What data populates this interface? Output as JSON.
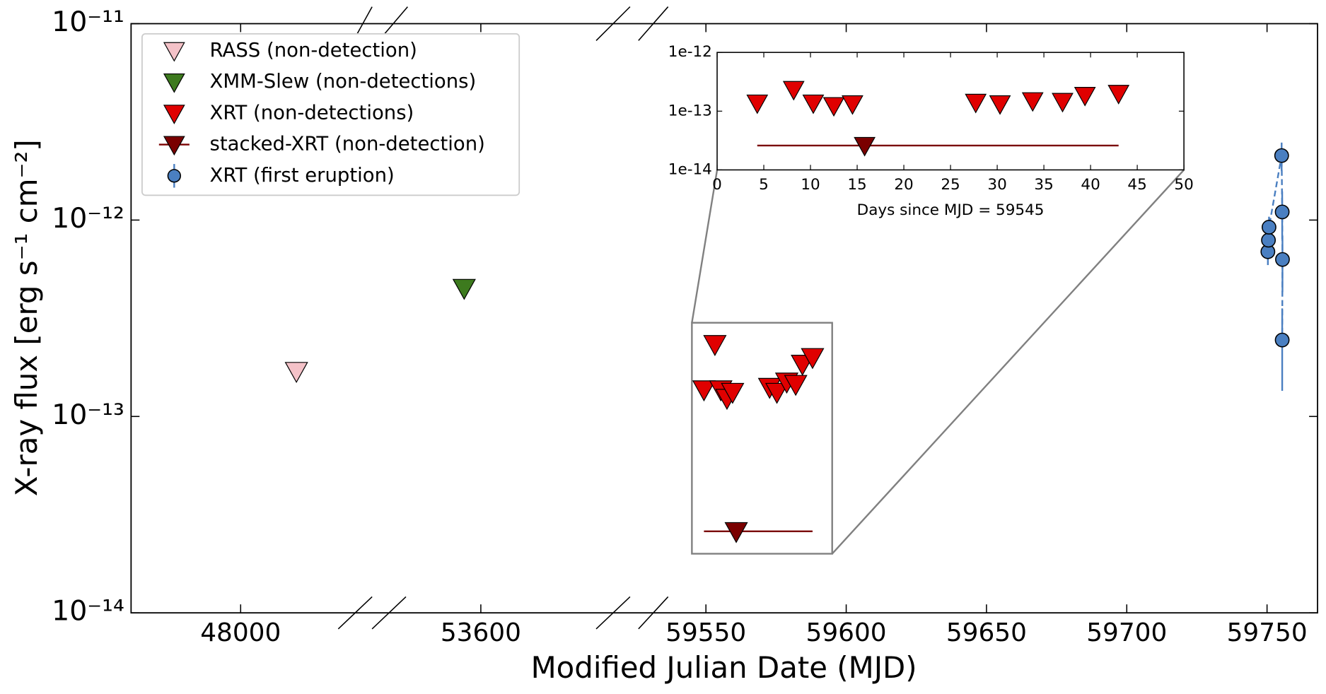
{
  "chart_data": {
    "type": "scatter",
    "xlabel": "Modified Julian Date (MJD)",
    "ylabel": "X-ray flux [erg s⁻¹ cm⁻²]",
    "log_y": true,
    "legend": "upper left",
    "ylim": [
      1e-14,
      1e-11
    ],
    "yticks": [
      {
        "value": 1e-14,
        "label": "10⁻¹⁴"
      },
      {
        "value": 1e-13,
        "label": "10⁻¹³"
      },
      {
        "value": 1e-12,
        "label": "10⁻¹²"
      },
      {
        "value": 1e-11,
        "label": "10⁻¹¹"
      }
    ],
    "x_segments": [
      {
        "xlim": [
          45800,
          50300
        ],
        "xticks": [
          48000
        ]
      },
      {
        "xlim": [
          52100,
          55600
        ],
        "xticks": [
          53600
        ]
      },
      {
        "xlim": [
          59535,
          59768
        ],
        "xticks": [
          59550,
          59600,
          59650,
          59700,
          59750
        ]
      }
    ],
    "series": [
      {
        "name": "RASS (non-detection)",
        "color": "#f4c2c8",
        "marker": "down-triangle",
        "x": [
          49120
        ],
        "values": [
          1.7e-13
        ]
      },
      {
        "name": "XMM-Slew (non-detections)",
        "color": "#3d7a1e",
        "marker": "down-triangle",
        "x": [
          53340
        ],
        "values": [
          4.5e-13
        ]
      },
      {
        "name": "XRT (non-detections)",
        "color": "#e00000",
        "marker": "down-triangle",
        "x": [
          59549.3,
          59553.2,
          59555.3,
          59557.5,
          59559.5,
          59572.7,
          59575.3,
          59578.8,
          59582.0,
          59584.4,
          59588.0
        ],
        "values": [
          1.37e-13,
          2.33e-13,
          1.37e-13,
          1.24e-13,
          1.33e-13,
          1.41e-13,
          1.33e-13,
          1.5e-13,
          1.46e-13,
          1.85e-13,
          2e-13
        ]
      },
      {
        "name": "stacked-XRT (non-detection)",
        "color": "#7a0000",
        "marker": "down-triangle",
        "x": [
          59560.8
        ],
        "values": [
          2.6e-14
        ],
        "xerr": [
          [
            11.5,
            27.2
          ]
        ]
      },
      {
        "name": "XRT (first eruption)",
        "color": "#4a7fc1",
        "marker": "circle",
        "x": [
          59750.3,
          59750.5,
          59750.7,
          59755.2,
          59755.4,
          59755.5,
          59755.4
        ],
        "values": [
          6.9e-13,
          7.9e-13,
          9.2e-13,
          2.13e-12,
          1.1e-12,
          6.3e-13,
          2.45e-13
        ],
        "yerr": [
          1e-13,
          1e-13,
          1.2e-13,
          3.5e-13,
          3e-13,
          2e-13,
          1.1e-13
        ],
        "line": "dashed"
      }
    ],
    "zoom_box": {
      "xlim": [
        59545,
        59595
      ],
      "ylim": [
        2e-14,
        3e-13
      ]
    },
    "inset": {
      "xlabel": "Days since MJD = 59545",
      "xlim": [
        0,
        50
      ],
      "xticks": [
        0,
        5,
        10,
        15,
        20,
        25,
        30,
        35,
        40,
        45,
        50
      ],
      "ylim": [
        1e-14,
        1e-12
      ],
      "yticks": [
        {
          "value": 1e-14,
          "label": "1e-14"
        },
        {
          "value": 1e-13,
          "label": "1e-13"
        },
        {
          "value": 1e-12,
          "label": "1e-12"
        }
      ],
      "series": [
        {
          "color": "#e00000",
          "x": [
            4.3,
            8.2,
            10.3,
            12.5,
            14.5,
            27.7,
            30.3,
            33.8,
            37.0,
            39.4,
            43.0
          ],
          "values": [
            1.37e-13,
            2.33e-13,
            1.37e-13,
            1.24e-13,
            1.33e-13,
            1.41e-13,
            1.33e-13,
            1.5e-13,
            1.46e-13,
            1.85e-13,
            2e-13
          ]
        },
        {
          "color": "#7a0000",
          "x": [
            15.8
          ],
          "values": [
            2.6e-14
          ],
          "xerr": [
            [
              11.5,
              27.2
            ]
          ]
        }
      ]
    }
  }
}
